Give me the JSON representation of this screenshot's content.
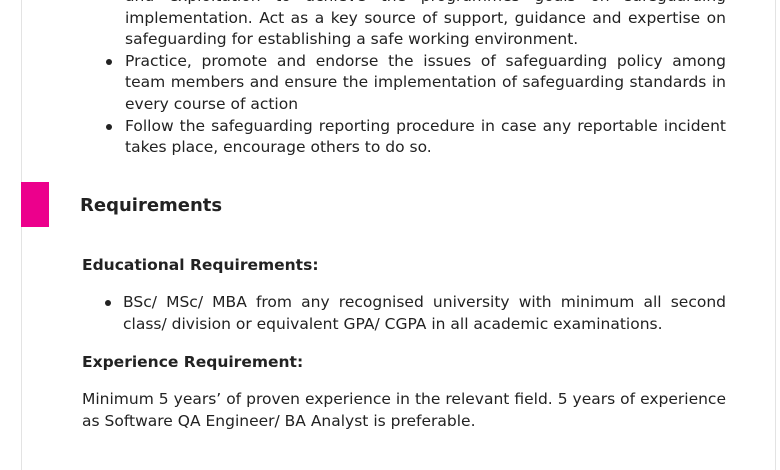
{
  "top_bullets": [
    "and exploitation to achieve the programmes goals on safeguarding implementation. Act as a key source of support, guidance and expertise on safeguarding for establishing a safe working environment.",
    "Practice, promote and endorse the issues of safeguarding policy among team members and ensure the implementation of safeguarding standards in every course of action",
    "Follow the safeguarding reporting procedure in case any reportable incident takes place, encourage others to do so."
  ],
  "section": {
    "title": "Requirements",
    "accent_color": "#ec008c"
  },
  "educational": {
    "heading": "Educational Requirements:",
    "items": [
      "BSc/ MSc/ MBA from any recognised university with minimum all second class/ division or equivalent GPA/ CGPA in all academic examinations."
    ]
  },
  "experience": {
    "heading": "Experience Requirement:",
    "text": "Minimum 5 years’ of proven experience in the relevant field. 5 years of experience as Software QA Engineer/ BA Analyst is preferable."
  }
}
